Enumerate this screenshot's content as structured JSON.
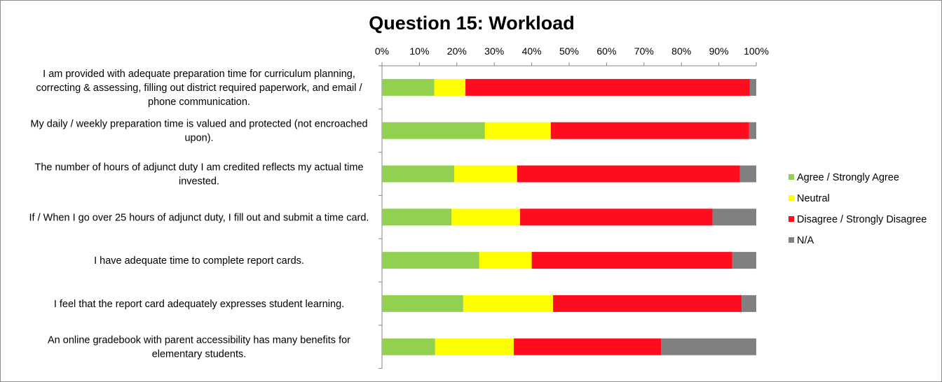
{
  "chart_data": {
    "type": "bar",
    "orientation": "horizontal",
    "stacked": "percent",
    "title": "Question 15:  Workload",
    "xlim": [
      0,
      100
    ],
    "x_ticks": [
      "0%",
      "10%",
      "20%",
      "30%",
      "40%",
      "50%",
      "60%",
      "70%",
      "80%",
      "90%",
      "100%"
    ],
    "x_axis_position": "top",
    "grid": false,
    "legend_position": "right",
    "categories": [
      [
        "I am provided with adequate preparation time for curriculum planning,",
        "correcting & assessing, filling out district required paperwork, and email /",
        "phone communication."
      ],
      [
        "My daily / weekly preparation time is valued and protected (not encroached",
        "upon)."
      ],
      [
        "The number of hours of adjunct duty I am credited reflects my actual time",
        "invested."
      ],
      [
        "If / When I go over 25 hours of adjunct duty, I fill out and submit a time card."
      ],
      [
        "I have adequate time to complete report cards."
      ],
      [
        "I feel that the report card adequately expresses student learning."
      ],
      [
        "An online gradebook with parent accessibility has many benefits for",
        "elementary students."
      ]
    ],
    "series": [
      {
        "name": "Agree / Strongly Agree",
        "color": "#92d050",
        "values": [
          14,
          27.5,
          19.3,
          18.6,
          26,
          21.7,
          14.2
        ]
      },
      {
        "name": "Neutral",
        "color": "#ffff00",
        "values": [
          8.3,
          17.6,
          16.8,
          18.3,
          14,
          24,
          21
        ]
      },
      {
        "name": "Disagree / Strongly Disagree",
        "color": "#ff0d1e",
        "values": [
          76,
          53,
          59.5,
          51.4,
          53.6,
          50.4,
          39.4
        ]
      },
      {
        "name": "N/A",
        "color": "#808080",
        "values": [
          1.7,
          1.9,
          4.4,
          11.7,
          6.4,
          3.9,
          25.4
        ]
      }
    ]
  }
}
